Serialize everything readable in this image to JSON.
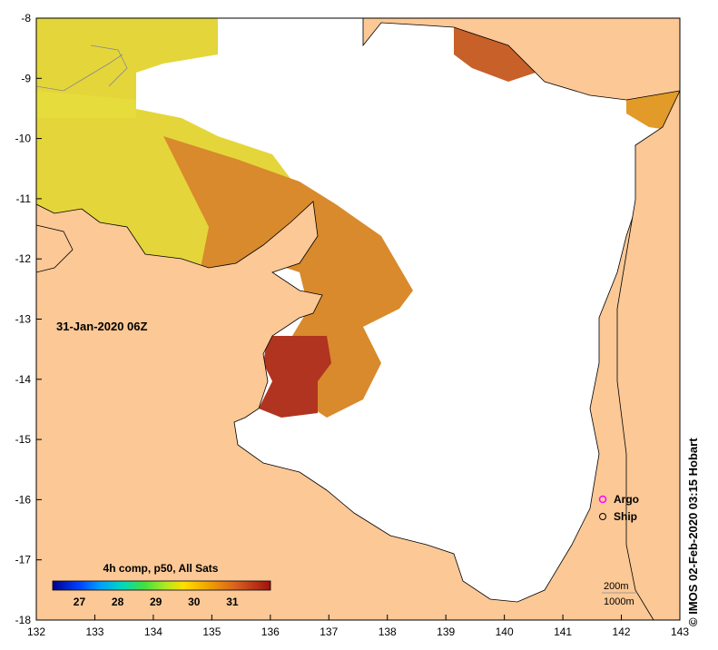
{
  "map": {
    "timestamp": "31-Jan-2020 06Z",
    "credit": "© IMOS 02-Feb-2020 03:15 Hobart",
    "x_ticks": [
      "132",
      "133",
      "134",
      "135",
      "136",
      "137",
      "138",
      "139",
      "140",
      "141",
      "142",
      "143"
    ],
    "y_ticks": [
      "-8",
      "-9",
      "-10",
      "-11",
      "-12",
      "-13",
      "-14",
      "-15",
      "-16",
      "-17",
      "-18"
    ],
    "lon_range": [
      132,
      143
    ],
    "lat_range": [
      -18,
      -8
    ],
    "colorbar": {
      "title": "4h comp, p50, All Sats",
      "range": [
        26.3,
        32
      ],
      "ticks": [
        "27",
        "28",
        "29",
        "30",
        "31"
      ],
      "tick_values": [
        27,
        28,
        29,
        30,
        31
      ]
    },
    "legend": {
      "argo": "Argo",
      "ship": "Ship",
      "argo_color": "#ff00ff",
      "ship_color": "#000000"
    },
    "contours": [
      "200m",
      "1000m"
    ],
    "colors": {
      "land": "#fbc896",
      "no_data": "#ffffff",
      "sst_yellow": "#e8dc3a",
      "sst_orange": "#dc8c2a",
      "sst_red": "#b4321e"
    }
  }
}
